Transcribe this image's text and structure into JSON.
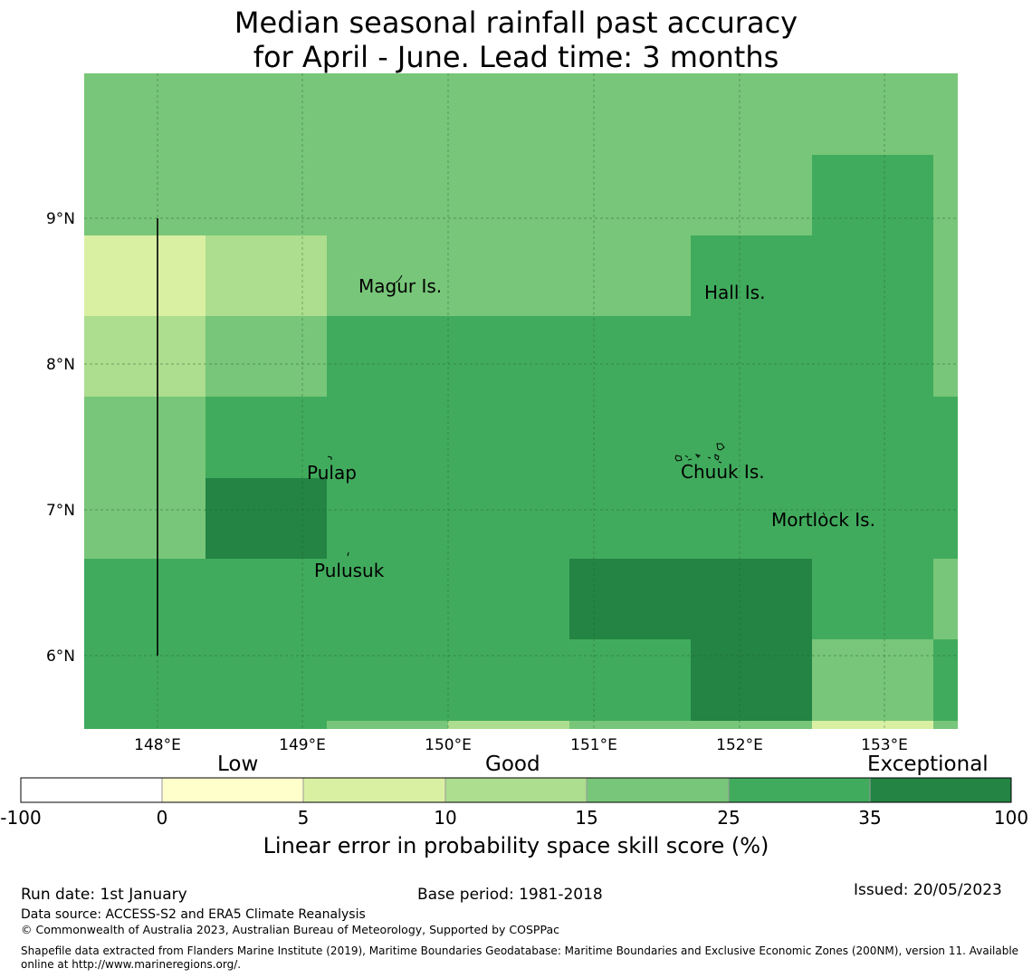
{
  "title": {
    "line1": "Median seasonal rainfall past accuracy",
    "line2": "for April - June. Lead time: 3 months"
  },
  "map": {
    "lon_ticks": [
      "148°E",
      "149°E",
      "150°E",
      "151°E",
      "152°E",
      "153°E"
    ],
    "lat_ticks": [
      "9°N",
      "8°N",
      "7°N",
      "6°N"
    ],
    "places": [
      {
        "name": "Magur Is."
      },
      {
        "name": "Hall Is."
      },
      {
        "name": "Pulap"
      },
      {
        "name": "Chuuk Is."
      },
      {
        "name": "Mortlock Is."
      },
      {
        "name": "Pulusuk"
      }
    ]
  },
  "colorbar": {
    "category_labels": [
      "Low",
      "Good",
      "Exceptional"
    ],
    "ticks": [
      "-100",
      "0",
      "5",
      "10",
      "15",
      "25",
      "35",
      "100"
    ],
    "colors": [
      "#ffffff",
      "#ffffcc",
      "#d9f0a3",
      "#addd8e",
      "#78c679",
      "#41ab5d",
      "#238443"
    ],
    "axis_label": "Linear error in probability space skill score (%)"
  },
  "footer": {
    "run_date": "Run date: 1st January",
    "base_period": "Base period: 1981-2018",
    "issued": "Issued: 20/05/2023",
    "data_source": "Data source: ACCESS-S2 and ERA5 Climate Reanalysis",
    "copyright": "© Commonwealth of Australia 2023, Australian Bureau of Meteorology, Supported by COSPPac",
    "shapefile": "Shapefile data extracted from Flanders Marine Institute (2019), Maritime Boundaries Geodatabase: Maritime Boundaries and Exclusive Economic Zones (200NM), version 11. Available online at http://www.marineregions.org/."
  }
}
